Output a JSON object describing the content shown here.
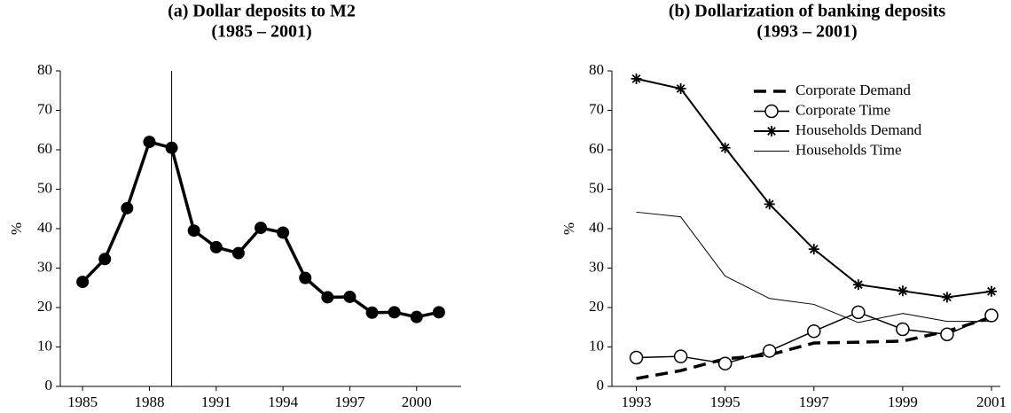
{
  "chart_data": [
    {
      "type": "line",
      "title": "(a) Dollar deposits to M2",
      "subtitle": "(1985 – 2001)",
      "y_label": "%",
      "x": [
        1985,
        1986,
        1987,
        1988,
        1989,
        1990,
        1991,
        1992,
        1993,
        1994,
        1995,
        1996,
        1997,
        1998,
        1999,
        2000,
        2001
      ],
      "series": [
        {
          "color": "#000000",
          "marker": "filled-circle",
          "dash": false,
          "width": 3.5,
          "values": [
            26.5,
            32.3,
            45.2,
            62,
            60.5,
            39.5,
            35.3,
            33.8,
            40.2,
            39,
            27.5,
            22.6,
            22.7,
            18.7,
            18.8,
            17.6,
            18.8
          ]
        }
      ],
      "xlim": [
        1984,
        2002
      ],
      "xticks": [
        1985,
        1988,
        1991,
        1994,
        1997,
        2000
      ],
      "ylim": [
        0,
        80
      ],
      "yticks": [
        0,
        10,
        20,
        30,
        40,
        50,
        60,
        70,
        80
      ],
      "vline": 1989
    },
    {
      "type": "line",
      "title": "(b) Dollarization of banking deposits",
      "subtitle": "(1993 – 2001)",
      "y_label": "%",
      "x": [
        1993,
        1994,
        1995,
        1996,
        1997,
        1998,
        1999,
        2000,
        2001
      ],
      "series": [
        {
          "name": "Corporate Demand",
          "color": "#000000",
          "marker": "none",
          "dash": true,
          "width": 3.5,
          "values": [
            2,
            4,
            7,
            8,
            11,
            11.2,
            11.5,
            14,
            17.5
          ]
        },
        {
          "name": "Corporate Time",
          "color": "#000000",
          "marker": "open-circle",
          "dash": false,
          "width": 1.5,
          "values": [
            7.3,
            7.6,
            5.8,
            9,
            14,
            18.8,
            14.5,
            13.2,
            18
          ]
        },
        {
          "name": "Households Demand",
          "color": "#000000",
          "marker": "star",
          "dash": false,
          "width": 2,
          "values": [
            78,
            75.5,
            60.5,
            46.2,
            34.8,
            25.8,
            24.2,
            22.6,
            24.1
          ]
        },
        {
          "name": "Households Time",
          "color": "#000000",
          "marker": "none",
          "dash": false,
          "width": 1,
          "values": [
            44.2,
            43,
            28,
            22.3,
            20.8,
            16.2,
            18.5,
            16.5,
            16.5
          ]
        }
      ],
      "xlim": [
        1992.45,
        2001.2
      ],
      "xticks": [
        1993,
        1995,
        1997,
        1999,
        2001
      ],
      "ylim": [
        0,
        80
      ],
      "yticks": [
        0,
        10,
        20,
        30,
        40,
        50,
        60,
        70,
        80
      ],
      "legend": "upper right"
    }
  ]
}
